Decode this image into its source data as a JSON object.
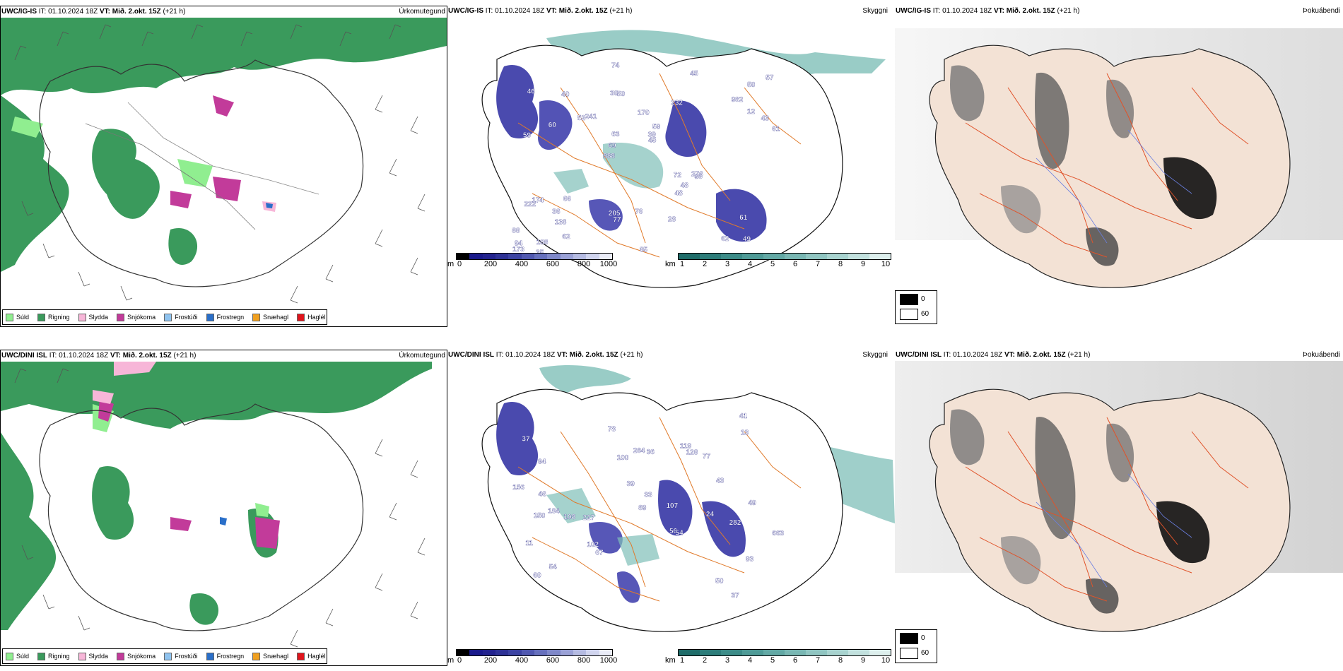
{
  "rows": [
    {
      "precip": {
        "model": "UWC/IG-IS",
        "it_label": "IT:",
        "it_value": "01.10.2024 18Z",
        "vt_label": "VT:",
        "vt_value": "Mið. 2.okt. 15Z",
        "lead": "(+21 h)",
        "param": "Úrkomutegund"
      },
      "cloud": {
        "model": "UWC/IG-IS",
        "it_label": "IT:",
        "it_value": "01.10.2024 18Z",
        "vt_label": "VT:",
        "vt_value": "Mið. 2.okt. 15Z",
        "lead": "(+21 h)",
        "param": "Skyggni",
        "labels": [
          "49",
          "59",
          "50",
          "888",
          "232",
          "108",
          "30",
          "170",
          "174",
          "241",
          "88",
          "138",
          "50",
          "59",
          "98",
          "46",
          "74",
          "61",
          "72",
          "12",
          "69",
          "205",
          "63",
          "40",
          "45",
          "66",
          "62",
          "61",
          "276",
          "65",
          "52",
          "60",
          "48",
          "62",
          "43",
          "39",
          "94",
          "77",
          "45",
          "222",
          "982",
          "57",
          "48",
          "28",
          "36",
          "35",
          "173",
          "76"
        ]
      },
      "fog": {
        "model": "UWC/IG-IS",
        "it_label": "IT:",
        "it_value": "01.10.2024 18Z",
        "vt_label": "VT:",
        "vt_value": "Mið. 2.okt. 15Z",
        "lead": "(+21 h)",
        "param": "Þokuábendi"
      }
    },
    {
      "precip": {
        "model": "UWC/DINI ISL",
        "it_label": "IT:",
        "it_value": "01.10.2024 18Z",
        "vt_label": "VT:",
        "vt_value": "Mið. 2.okt. 15Z",
        "lead": "(+21 h)",
        "param": "Úrkomutegund"
      },
      "cloud": {
        "model": "UWC/DINI ISL",
        "it_label": "IT:",
        "it_value": "01.10.2024 18Z",
        "vt_label": "VT:",
        "vt_value": "Mið. 2.okt. 15Z",
        "lead": "(+21 h)",
        "param": "Skyggni",
        "labels": [
          "37",
          "184",
          "56",
          "37",
          "93",
          "94",
          "54",
          "227",
          "77",
          "284",
          "128",
          "50",
          "67",
          "78",
          "107",
          "11",
          "24",
          "33",
          "156",
          "60",
          "41",
          "36",
          "43",
          "663",
          "49",
          "46",
          "108",
          "89",
          "39",
          "13",
          "54",
          "150",
          "102",
          "119",
          "100",
          "282"
        ]
      },
      "fog": {
        "model": "UWC/DINI ISL",
        "it_label": "IT:",
        "it_value": "01.10.2024 18Z",
        "vt_label": "VT:",
        "vt_value": "Mið. 2.okt. 15Z",
        "lead": "(+21 h)",
        "param": "Þokuábendi"
      }
    }
  ],
  "precip_legend": [
    {
      "label": "Súld",
      "color": "#90ee90"
    },
    {
      "label": "Rigning",
      "color": "#3a9a5c"
    },
    {
      "label": "Slydda",
      "color": "#f7b6d8"
    },
    {
      "label": "Snjókoma",
      "color": "#c23b9a"
    },
    {
      "label": "Frostúði",
      "color": "#8fc3ef"
    },
    {
      "label": "Frostregn",
      "color": "#2a6fc9"
    },
    {
      "label": "Snæhagl",
      "color": "#f0a020"
    },
    {
      "label": "Haglél",
      "color": "#e0141c"
    }
  ],
  "ceiling_bar": {
    "unit": "m",
    "ticks": [
      "0",
      "200",
      "400",
      "600",
      "800",
      "1000"
    ],
    "colors": [
      "#000000",
      "#1a1a8c",
      "#23238f",
      "#2e3296",
      "#3c43a3",
      "#5058b0",
      "#6670bd",
      "#7f88c9",
      "#9aa1d6",
      "#b5bbe2",
      "#d0d4ee",
      "#ebedf8"
    ]
  },
  "visibility_bar": {
    "unit": "km",
    "ticks": [
      "1",
      "2",
      "3",
      "4",
      "5",
      "6",
      "7",
      "8",
      "9",
      "10"
    ],
    "colors": [
      "#1f6d6a",
      "#2d7d7a",
      "#3c8c88",
      "#4f9b97",
      "#63a9a5",
      "#79b7b3",
      "#90c5c1",
      "#a8d3cf",
      "#c2e1de",
      "#ddefed"
    ]
  },
  "fog_legend": {
    "items": [
      {
        "label": "0",
        "color": "#000000"
      },
      {
        "label": "60",
        "color": "#ffffff"
      }
    ]
  }
}
